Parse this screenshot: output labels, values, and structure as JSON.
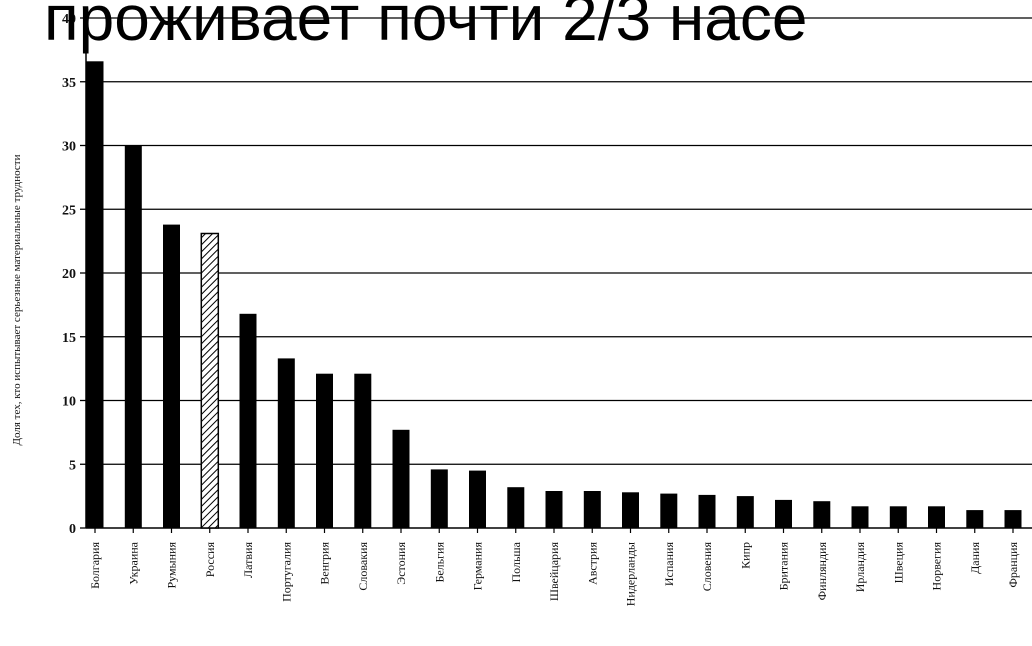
{
  "overlay_text": "проживает почти 2/3 насе",
  "chart_data": {
    "type": "bar",
    "title": "",
    "xlabel": "",
    "ylabel": "Доля тех, кто испытывает серьезные материальные трудности",
    "ylim": [
      0,
      40
    ],
    "yticks": [
      0,
      5,
      10,
      15,
      20,
      25,
      30,
      35,
      40
    ],
    "grid": true,
    "categories": [
      "Болгария",
      "Украина",
      "Румыния",
      "Россия",
      "Латвия",
      "Португалия",
      "Венгрия",
      "Словакия",
      "Эстония",
      "Бельгия",
      "Германия",
      "Польша",
      "Швейцария",
      "Австрия",
      "Нидерланды",
      "Испания",
      "Словения",
      "Кипр",
      "Британия",
      "Финляндия",
      "Ирландия",
      "Швеция",
      "Норвегия",
      "Дания",
      "Франция"
    ],
    "values": [
      36.6,
      30.0,
      23.8,
      23.1,
      16.8,
      13.3,
      12.1,
      12.1,
      7.7,
      4.6,
      4.5,
      3.2,
      2.9,
      2.9,
      2.8,
      2.7,
      2.6,
      2.5,
      2.2,
      2.1,
      1.7,
      1.7,
      1.7,
      1.4,
      1.4
    ],
    "highlight": [
      "Россия"
    ],
    "colors": {
      "bar": "#000000",
      "highlight_stripe": "#000000",
      "grid": "#000000",
      "text": "#111111"
    }
  }
}
